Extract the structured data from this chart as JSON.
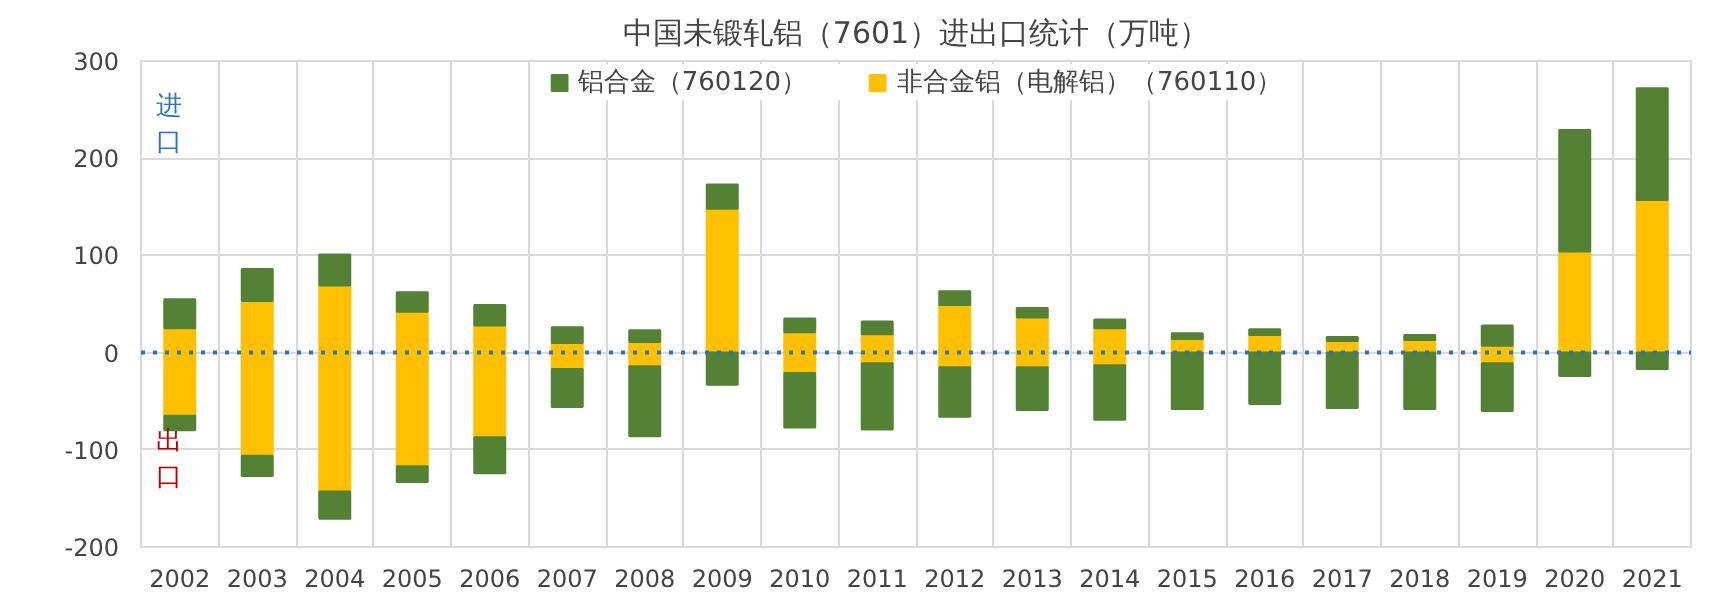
{
  "chart_data": {
    "type": "bar",
    "stacked": true,
    "title": "中国未锻轧铝（7601）进出口统计（万吨）",
    "categories": [
      "2002",
      "2003",
      "2004",
      "2005",
      "2006",
      "2007",
      "2008",
      "2009",
      "2010",
      "2011",
      "2012",
      "2013",
      "2014",
      "2015",
      "2016",
      "2017",
      "2018",
      "2019",
      "2020",
      "2021"
    ],
    "series": [
      {
        "name": "非合金铝（电解铝）（760110）",
        "color": "#ffc000",
        "values": [
          25,
          53,
          69,
          42,
          28,
          10,
          11,
          148,
          21,
          19,
          49,
          36,
          25,
          14,
          18,
          12,
          13,
          7,
          104,
          157
        ]
      },
      {
        "name": "铝合金（760120）",
        "color": "#548235",
        "values": [
          30,
          33,
          32,
          20,
          21,
          16,
          12,
          25,
          14,
          13,
          14,
          10,
          9,
          6,
          6,
          4,
          5,
          21,
          125,
          115
        ]
      },
      {
        "color": "#ffc000",
        "values": [
          -65,
          -106,
          -143,
          -117,
          -87,
          -17,
          -14,
          null,
          -21,
          -11,
          -15,
          -15,
          -13,
          null,
          null,
          null,
          null,
          -11,
          null,
          null
        ]
      },
      {
        "color": "#548235",
        "values": [
          -15,
          -21,
          -28,
          -16,
          -37,
          -39,
          -72,
          -33,
          -56,
          -68,
          -51,
          -44,
          -56,
          -58,
          -53,
          -57,
          -58,
          -49,
          -24,
          -17
        ]
      }
    ],
    "ylim": [
      -200,
      300
    ],
    "yticks": [
      -200,
      -100,
      0,
      100,
      200,
      300
    ],
    "grid": true,
    "legend": "top",
    "ref_lines": [
      {
        "axis": "y",
        "value": 0,
        "color": "#2e75b6",
        "line_style": "dotted"
      }
    ],
    "annotations": [
      "进口",
      "出口"
    ]
  }
}
